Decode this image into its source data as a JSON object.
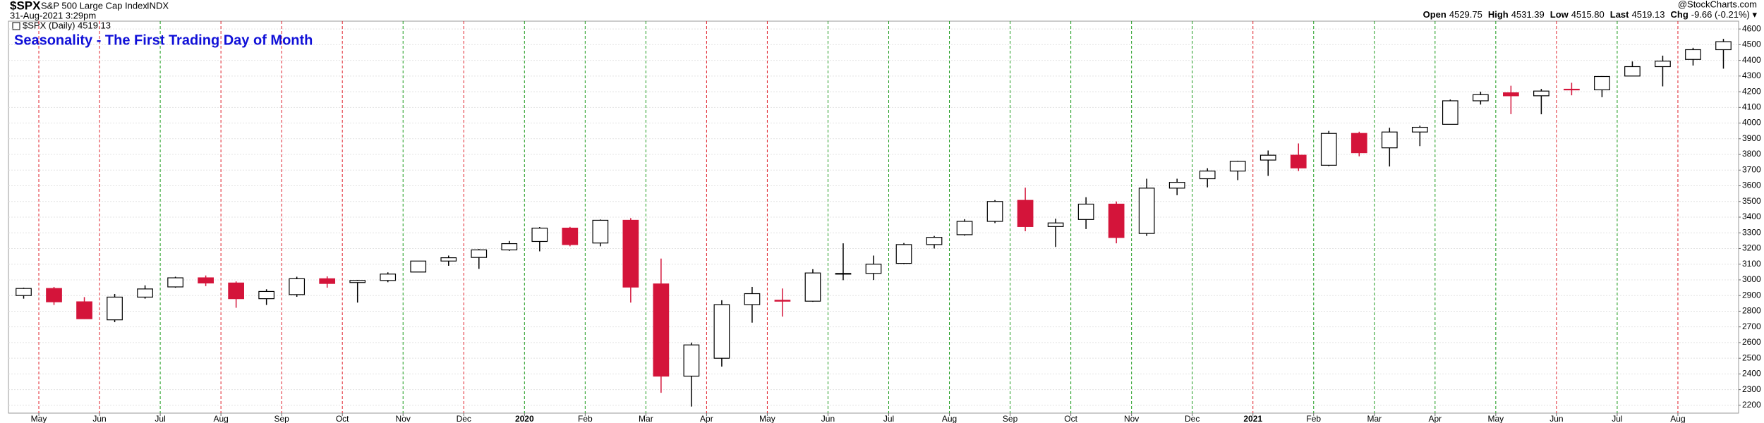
{
  "chart_data": {
    "type": "candlestick",
    "symbol": "$SPX",
    "name": "S&P 500 Large Cap Index",
    "exchange": "INDX",
    "timestamp": "31-Aug-2021 3:29pm",
    "legend_label": "$SPX (Daily) 4519.13",
    "quote": [
      {
        "label": "Open",
        "value": "4529.75"
      },
      {
        "label": "High",
        "value": "4531.39"
      },
      {
        "label": "Low",
        "value": "4515.80"
      },
      {
        "label": "Last",
        "value": "4519.13"
      },
      {
        "label": "Chg",
        "value": "-9.66 (-0.21%) ▾"
      }
    ],
    "credit": "@StockCharts.com",
    "annotation": "Seasonality - The First Trading Day of Month",
    "categories": [
      null,
      "May",
      null,
      "Jun",
      null,
      "Jul",
      null,
      "Aug",
      null,
      "Sep",
      null,
      "Oct",
      null,
      "Nov",
      null,
      "Dec",
      null,
      "2020",
      null,
      "Feb",
      null,
      "Mar",
      null,
      "Apr",
      null,
      "May",
      null,
      "Jun",
      null,
      "Jul",
      null,
      "Aug",
      null,
      "Sep",
      null,
      "Oct",
      null,
      "Nov",
      null,
      "Dec",
      null,
      "2021",
      null,
      "Feb",
      null,
      "Mar",
      null,
      "Apr",
      null,
      "May",
      null,
      "Jun",
      null,
      "Jul",
      null,
      "Aug",
      null
    ],
    "month_line_colors": [
      null,
      "#e0202a",
      null,
      "#e0202a",
      null,
      "#1a9a1a",
      null,
      "#e0202a",
      null,
      "#e0202a",
      null,
      "#e0202a",
      null,
      "#1a9a1a",
      null,
      "#e0202a",
      null,
      "#1a9a1a",
      null,
      "#1a9a1a",
      null,
      "#1a9a1a",
      null,
      "#e0202a",
      null,
      "#e0202a",
      null,
      "#1a9a1a",
      null,
      "#1a9a1a",
      null,
      "#1a9a1a",
      null,
      "#1a9a1a",
      null,
      "#1a9a1a",
      null,
      "#1a9a1a",
      null,
      "#1a9a1a",
      null,
      "#e0202a",
      null,
      "#1a9a1a",
      null,
      "#1a9a1a",
      null,
      "#1a9a1a",
      null,
      "#1a9a1a",
      null,
      "#e0202a",
      null,
      "#1a9a1a",
      null,
      "#e0202a",
      null
    ],
    "open": [
      2900,
      2945,
      2860,
      2745,
      2890,
      2955,
      3013,
      2980,
      2880,
      2906,
      3007,
      2983,
      2996,
      3050,
      3120,
      3143,
      3191,
      3245,
      3330,
      3235,
      3380,
      2974,
      2386,
      2500,
      2842,
      2870,
      2864,
      3038,
      3041,
      3105,
      3225,
      3288,
      3373,
      3507,
      3340,
      3385,
      3483,
      3296,
      3585,
      3645,
      3694,
      3764,
      3795,
      3731,
      3934,
      3842,
      3943,
      3992,
      4142,
      4193,
      4174,
      4216,
      4212,
      4300,
      4360,
      4406,
      4468
    ],
    "high": [
      2950,
      2955,
      2890,
      2910,
      2965,
      3020,
      3028,
      2990,
      2940,
      3020,
      3022,
      3000,
      3048,
      3120,
      3155,
      3197,
      3248,
      3337,
      3338,
      3385,
      3394,
      3136,
      2600,
      2870,
      2955,
      2945,
      3068,
      3233,
      3155,
      3235,
      3280,
      3387,
      3509,
      3588,
      3390,
      3527,
      3500,
      3645,
      3645,
      3712,
      3760,
      3825,
      3870,
      3950,
      3945,
      3970,
      3983,
      4150,
      4200,
      4238,
      4218,
      4257,
      4300,
      4393,
      4430,
      4480,
      4537
    ],
    "low": [
      2880,
      2840,
      2750,
      2730,
      2880,
      2950,
      2960,
      2822,
      2840,
      2892,
      2950,
      2855,
      2985,
      3050,
      3090,
      3070,
      3185,
      3182,
      3214,
      3214,
      2855,
      2280,
      2192,
      2447,
      2727,
      2766,
      2860,
      2998,
      2999,
      3101,
      3200,
      3282,
      3362,
      3310,
      3210,
      3324,
      3233,
      3280,
      3540,
      3590,
      3636,
      3663,
      3694,
      3725,
      3788,
      3723,
      3853,
      3992,
      4118,
      4057,
      4056,
      4177,
      4165,
      4300,
      4234,
      4367,
      4347
    ],
    "close": [
      2945,
      2860,
      2752,
      2890,
      2942,
      3013,
      2980,
      2880,
      2926,
      3007,
      2977,
      2996,
      3037,
      3120,
      3141,
      3191,
      3231,
      3330,
      3225,
      3380,
      2954,
      2386,
      2585,
      2842,
      2912,
      2864,
      3044,
      3041,
      3100,
      3225,
      3271,
      3373,
      3500,
      3340,
      3363,
      3483,
      3270,
      3585,
      3622,
      3694,
      3756,
      3795,
      3714,
      3934,
      3811,
      3943,
      3973,
      4142,
      4181,
      4174,
      4204,
      4212,
      4297,
      4360,
      4395,
      4468,
      4519
    ],
    "up_color": "#000000",
    "down_color": "#d4143a",
    "ylim": [
      2150,
      4650
    ],
    "yticks": [
      2200,
      2300,
      2400,
      2500,
      2600,
      2700,
      2800,
      2900,
      3000,
      3100,
      3200,
      3300,
      3400,
      3500,
      3600,
      3700,
      3800,
      3900,
      4000,
      4100,
      4200,
      4300,
      4400,
      4500,
      4600
    ],
    "grid": true
  }
}
